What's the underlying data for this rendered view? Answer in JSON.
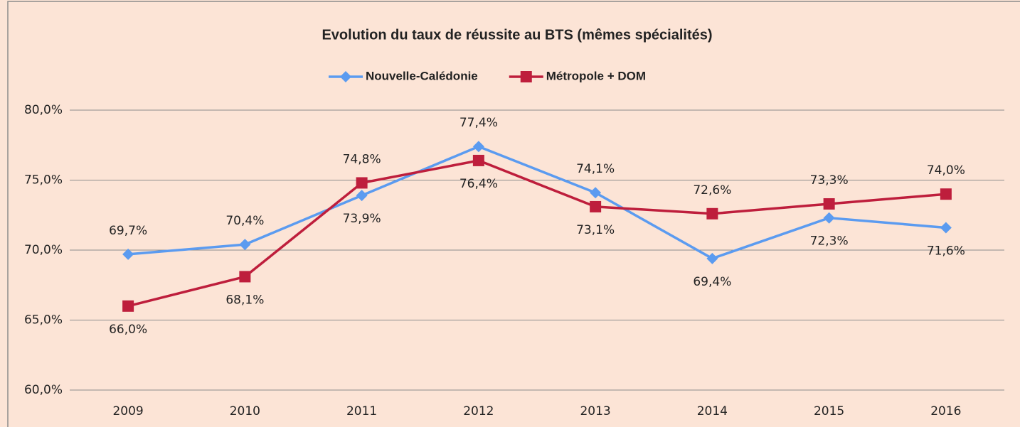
{
  "chart_data": {
    "type": "line",
    "title": "Evolution du taux de réussite au BTS (mêmes spécialités)",
    "categories": [
      "2009",
      "2010",
      "2011",
      "2012",
      "2013",
      "2014",
      "2015",
      "2016"
    ],
    "series": [
      {
        "name": "Nouvelle-Calédonie",
        "color": "#5b9bf0",
        "marker": "diamond",
        "values": [
          69.7,
          70.4,
          73.9,
          77.4,
          74.1,
          69.4,
          72.3,
          71.6
        ],
        "value_labels": [
          "69,7%",
          "70,4%",
          "73,9%",
          "77,4%",
          "74,1%",
          "69,4%",
          "72,3%",
          "71,6%"
        ]
      },
      {
        "name": "Métropole + DOM",
        "color": "#be1e3c",
        "marker": "square",
        "values": [
          66.0,
          68.1,
          74.8,
          76.4,
          73.1,
          72.6,
          73.3,
          74.0
        ],
        "value_labels": [
          "66,0%",
          "68,1%",
          "74,8%",
          "76,4%",
          "73,1%",
          "72,6%",
          "73,3%",
          "74,0%"
        ]
      }
    ],
    "ylim": [
      60,
      80
    ],
    "yticks": [
      {
        "value": 60,
        "label": "60,0%"
      },
      {
        "value": 65,
        "label": "65,0%"
      },
      {
        "value": 70,
        "label": "70,0%"
      },
      {
        "value": 75,
        "label": "75,0%"
      },
      {
        "value": 80,
        "label": "80,0%"
      }
    ],
    "grid": true,
    "legend": "top"
  }
}
